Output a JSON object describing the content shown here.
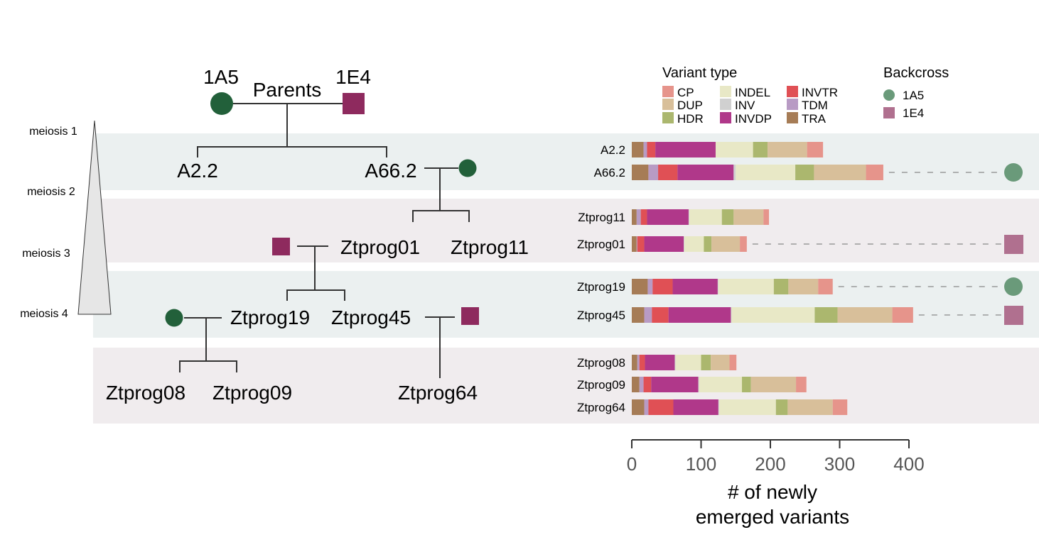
{
  "pedigree": {
    "parents_label": "Parents",
    "parent_1": "1A5",
    "parent_2": "1E4",
    "nodes": [
      "A2.2",
      "A66.2",
      "Ztprog01",
      "Ztprog11",
      "Ztprog19",
      "Ztprog45",
      "Ztprog08",
      "Ztprog09",
      "Ztprog64"
    ],
    "meiosis_labels": [
      "meiosis 1",
      "meiosis 2",
      "meiosis 3",
      "meiosis 4"
    ]
  },
  "legend": {
    "variant_title": "Variant type",
    "backcross_title": "Backcross",
    "backcross_items": [
      {
        "label": "1A5",
        "shape": "circle",
        "color": "#6a9a7a"
      },
      {
        "label": "1E4",
        "shape": "square",
        "color": "#b0708f"
      }
    ]
  },
  "chart_data": {
    "type": "bar",
    "orientation": "horizontal",
    "stacked": true,
    "xlabel": "# of newly\nemerged variants",
    "xlim": [
      0,
      400
    ],
    "xticks": [
      0,
      100,
      200,
      300,
      400
    ],
    "grid": false,
    "legend_position": "top-right",
    "categories": [
      "A2.2",
      "A66.2",
      "Ztprog11",
      "Ztprog01",
      "Ztprog19",
      "Ztprog45",
      "Ztprog08",
      "Ztprog09",
      "Ztprog64"
    ],
    "backcross": [
      null,
      "1A5",
      null,
      "1E4",
      "1A5",
      "1E4",
      null,
      null,
      null
    ],
    "series": [
      {
        "name": "TRA",
        "color": "#a67c56",
        "values": [
          17,
          24,
          7,
          7,
          23,
          18,
          8,
          11,
          18
        ]
      },
      {
        "name": "TDM",
        "color": "#b89bc4",
        "values": [
          5,
          14,
          6,
          1,
          7,
          11,
          3,
          6,
          6
        ]
      },
      {
        "name": "INVTR",
        "color": "#e05055",
        "values": [
          12,
          28,
          9,
          10,
          29,
          24,
          8,
          11,
          36
        ]
      },
      {
        "name": "INVDP",
        "color": "#b0388a",
        "values": [
          87,
          81,
          60,
          57,
          65,
          90,
          43,
          68,
          65
        ]
      },
      {
        "name": "INV",
        "color": "#d0d0d0",
        "values": [
          0,
          3,
          1,
          1,
          1,
          1,
          1,
          1,
          1
        ]
      },
      {
        "name": "INDEL",
        "color": "#e8e8c6",
        "values": [
          54,
          86,
          47,
          28,
          80,
          120,
          37,
          62,
          82
        ]
      },
      {
        "name": "HDR",
        "color": "#abb76e",
        "values": [
          21,
          27,
          17,
          11,
          21,
          33,
          14,
          13,
          17
        ]
      },
      {
        "name": "DUP",
        "color": "#d8bf9a",
        "values": [
          57,
          75,
          43,
          41,
          43,
          79,
          27,
          65,
          65
        ]
      },
      {
        "name": "CP",
        "color": "#e6948b",
        "values": [
          23,
          25,
          8,
          10,
          21,
          30,
          10,
          15,
          21
        ]
      }
    ]
  },
  "legend_order": [
    "CP",
    "DUP",
    "HDR",
    "INDEL",
    "INV",
    "INVDP",
    "INVTR",
    "TDM",
    "TRA"
  ],
  "colors": {
    "band_teal": "#ebf0f0",
    "band_pink": "#f0ecee",
    "node_1A5": "#22603a",
    "node_1E4": "#8e2a5e"
  }
}
